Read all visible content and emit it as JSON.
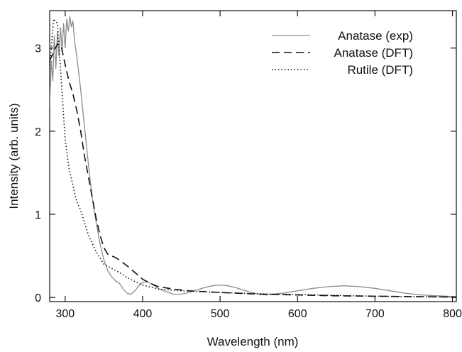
{
  "chart_data": {
    "type": "line",
    "xlabel": "Wavelength (nm)",
    "ylabel": "Intensity (arb. units)",
    "xlim": [
      280,
      805
    ],
    "ylim": [
      -0.05,
      3.45
    ],
    "xticks": [
      300,
      400,
      500,
      600,
      700,
      800
    ],
    "yticks": [
      0,
      1,
      2,
      3
    ],
    "grid": false,
    "legend_position": "top-right",
    "series": [
      {
        "name": "Anatase (exp)",
        "color": "#8c8c8c",
        "style": "solid",
        "x": [
          280,
          282,
          284,
          286,
          288,
          290,
          292,
          294,
          296,
          298,
          300,
          302,
          304,
          306,
          308,
          310,
          312,
          315,
          320,
          325,
          330,
          335,
          340,
          345,
          350,
          355,
          360,
          365,
          370,
          375,
          380,
          385,
          390,
          395,
          400,
          405,
          410,
          415,
          420,
          430,
          440,
          450,
          460,
          470,
          480,
          490,
          500,
          510,
          520,
          530,
          540,
          550,
          560,
          580,
          600,
          620,
          640,
          660,
          680,
          700,
          720,
          740,
          760,
          780,
          805
        ],
        "y": [
          2.3,
          2.85,
          2.6,
          3.15,
          2.75,
          3.2,
          2.9,
          3.25,
          2.95,
          3.3,
          3.0,
          3.35,
          3.2,
          3.38,
          3.25,
          3.33,
          3.1,
          2.9,
          2.5,
          2.05,
          1.6,
          1.2,
          0.9,
          0.65,
          0.45,
          0.32,
          0.25,
          0.2,
          0.17,
          0.1,
          0.05,
          0.04,
          0.08,
          0.14,
          0.18,
          0.19,
          0.17,
          0.14,
          0.11,
          0.07,
          0.04,
          0.04,
          0.06,
          0.09,
          0.12,
          0.14,
          0.15,
          0.14,
          0.12,
          0.09,
          0.06,
          0.04,
          0.03,
          0.05,
          0.08,
          0.11,
          0.13,
          0.14,
          0.13,
          0.11,
          0.08,
          0.05,
          0.03,
          0.02,
          0.01
        ]
      },
      {
        "name": "Anatase (DFT)",
        "color": "#111111",
        "style": "dashed",
        "x": [
          280,
          285,
          290,
          295,
          300,
          305,
          310,
          315,
          320,
          325,
          330,
          335,
          340,
          345,
          350,
          355,
          360,
          365,
          370,
          380,
          390,
          400,
          410,
          420,
          440,
          460,
          480,
          500,
          550,
          600,
          650,
          700,
          750,
          805
        ],
        "y": [
          2.85,
          2.95,
          3.05,
          3.02,
          2.8,
          2.6,
          2.45,
          2.25,
          2.0,
          1.7,
          1.45,
          1.2,
          0.95,
          0.75,
          0.6,
          0.52,
          0.5,
          0.48,
          0.45,
          0.38,
          0.3,
          0.22,
          0.17,
          0.13,
          0.1,
          0.08,
          0.07,
          0.06,
          0.04,
          0.03,
          0.02,
          0.015,
          0.01,
          0.005
        ]
      },
      {
        "name": "Rutile (DFT)",
        "color": "#111111",
        "style": "dotted",
        "x": [
          280,
          285,
          290,
          295,
          300,
          305,
          310,
          315,
          320,
          325,
          330,
          335,
          340,
          350,
          360,
          370,
          380,
          390,
          400,
          420,
          450,
          500,
          550,
          600,
          650,
          700,
          750,
          805
        ],
        "y": [
          2.75,
          3.35,
          3.3,
          2.6,
          1.9,
          1.55,
          1.35,
          1.15,
          1.05,
          0.9,
          0.75,
          0.65,
          0.55,
          0.4,
          0.35,
          0.3,
          0.24,
          0.19,
          0.15,
          0.1,
          0.08,
          0.06,
          0.045,
          0.035,
          0.025,
          0.015,
          0.01,
          0.005
        ]
      }
    ]
  }
}
